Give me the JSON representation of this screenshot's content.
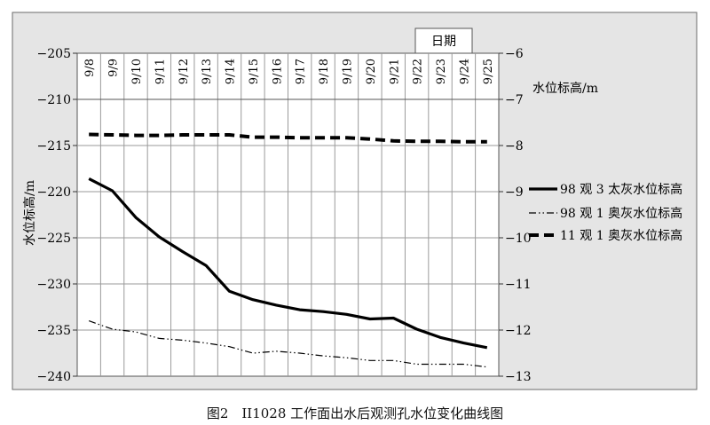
{
  "caption": "图2　II1028 工作面出水后观测孔水位变化曲线图",
  "chart_data": {
    "type": "line",
    "top_axis_title": "日期",
    "categories": [
      "9/8",
      "9/9",
      "9/10",
      "9/11",
      "9/12",
      "9/13",
      "9/14",
      "9/15",
      "9/16",
      "9/17",
      "9/18",
      "9/19",
      "9/20",
      "9/21",
      "9/22",
      "9/23",
      "9/24",
      "9/25"
    ],
    "ylabel_left": "水位标高/m",
    "ylabel_right": "水位标高/m",
    "ylim_left": [
      -240,
      -205
    ],
    "ylim_right": [
      -13,
      -6
    ],
    "yticks_left": [
      "−205",
      "−210",
      "−215",
      "−220",
      "−225",
      "−230",
      "−235",
      "−240"
    ],
    "yticks_right": [
      "−6",
      "−7",
      "−8",
      "−9",
      "−10",
      "−11",
      "−12",
      "−13"
    ],
    "grid": true,
    "legend_position": "right",
    "series": [
      {
        "name": "98 观 3 太灰水位标高",
        "axis": "left",
        "style": "solid",
        "color": "#000000",
        "values": [
          -218.6,
          -219.9,
          -222.8,
          -224.9,
          -226.5,
          -228.0,
          -230.8,
          -231.7,
          -232.3,
          -232.8,
          -233.0,
          -233.3,
          -233.8,
          -233.7,
          -234.9,
          -235.8,
          -236.4,
          -236.9
        ]
      },
      {
        "name": "98 观 1 奥灰水位标高",
        "axis": "left",
        "style": "dash-dot-dot",
        "color": "#000000",
        "values": [
          -234.0,
          -234.9,
          -235.2,
          -235.9,
          -236.1,
          -236.4,
          -236.8,
          -237.5,
          -237.3,
          -237.5,
          -237.8,
          -238.0,
          -238.3,
          -238.3,
          -238.7,
          -238.7,
          -238.7,
          -239.0
        ]
      },
      {
        "name": "11 观 1 奥灰水位标高",
        "axis": "right",
        "style": "dashed",
        "color": "#000000",
        "values": [
          -7.76,
          -7.77,
          -7.78,
          -7.78,
          -7.77,
          -7.77,
          -7.77,
          -7.82,
          -7.82,
          -7.83,
          -7.83,
          -7.83,
          -7.86,
          -7.9,
          -7.91,
          -7.91,
          -7.92,
          -7.92
        ]
      }
    ]
  },
  "colors": {
    "frame_bg": "#e5e5e5",
    "plot_bg": "#ffffff",
    "gridline": "#9a9a9a",
    "line": "#000000"
  }
}
